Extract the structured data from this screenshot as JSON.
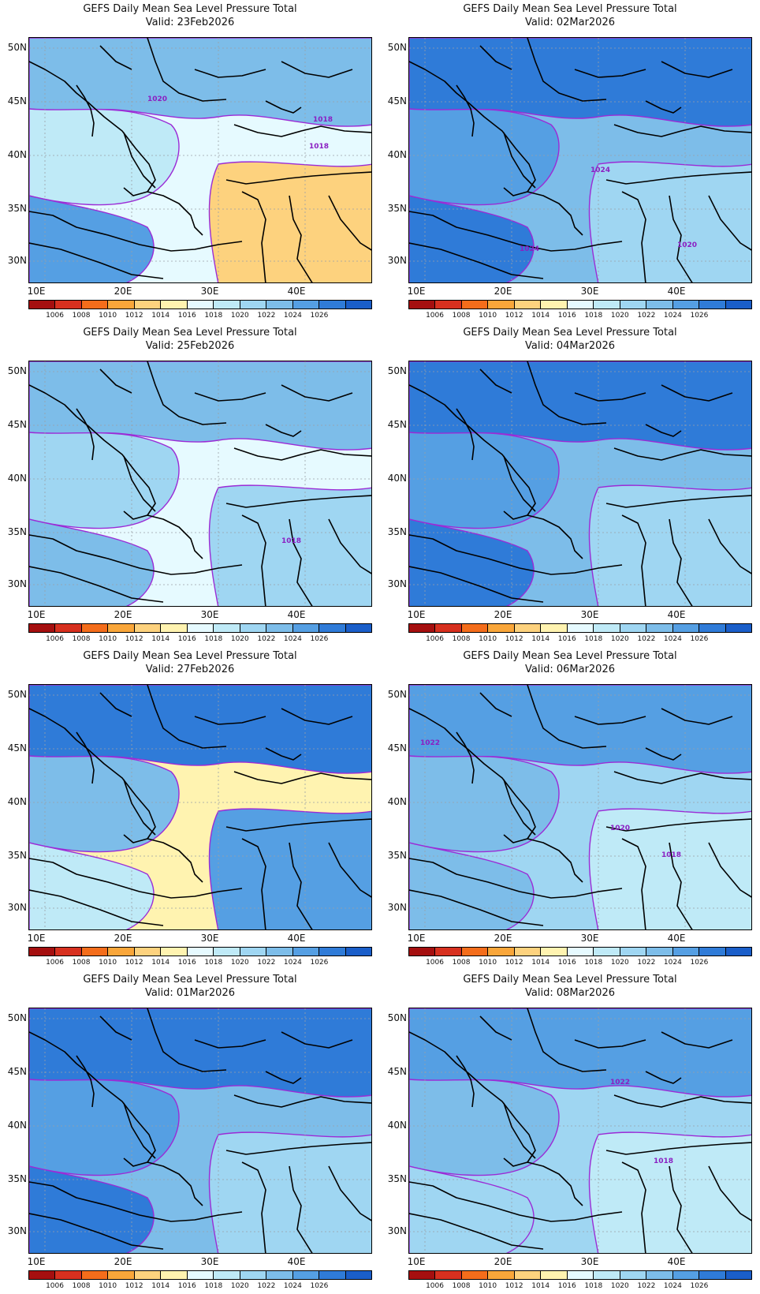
{
  "title": "GEFS Daily Mean Sea Level Pressure Total",
  "lat_labels": [
    "50N",
    "45N",
    "40N",
    "35N",
    "30N"
  ],
  "lon_labels": [
    "10E",
    "20E",
    "30E",
    "40E"
  ],
  "colorbar": {
    "labels": [
      "1006",
      "1008",
      "1010",
      "1012",
      "1014",
      "1016",
      "1018",
      "1020",
      "1022",
      "1024",
      "1026"
    ],
    "colors": [
      "#a50f0f",
      "#d7301f",
      "#f46d1b",
      "#f9a63a",
      "#fdd27e",
      "#fff3b0",
      "#e6faff",
      "#bfeaf7",
      "#9fd6f2",
      "#7dbde9",
      "#559fe3",
      "#2f7bd8",
      "#1a5ec9"
    ]
  },
  "panels": [
    {
      "valid": "Valid: 23Feb2026",
      "contour_labels": [
        "1020",
        "1018",
        "1018"
      ],
      "pressure_levels": [
        1022,
        1018,
        1016,
        1012,
        1024
      ]
    },
    {
      "valid": "Valid: 02Mar2026",
      "contour_labels": [
        "1024",
        "1024",
        "1020"
      ],
      "pressure_levels": [
        1026,
        1024,
        1022,
        1020,
        1026
      ]
    },
    {
      "valid": "Valid: 25Feb2026",
      "contour_labels": [
        "1018"
      ],
      "pressure_levels": [
        1022,
        1020,
        1016,
        1020,
        1022
      ]
    },
    {
      "valid": "Valid: 04Mar2026",
      "contour_labels": [],
      "pressure_levels": [
        1026,
        1024,
        1022,
        1020,
        1026
      ]
    },
    {
      "valid": "Valid: 27Feb2026",
      "contour_labels": [],
      "pressure_levels": [
        1026,
        1022,
        1014,
        1024,
        1018
      ]
    },
    {
      "valid": "Valid: 06Mar2026",
      "contour_labels": [
        "1022",
        "1020",
        "1018"
      ],
      "pressure_levels": [
        1024,
        1022,
        1020,
        1018,
        1022
      ]
    },
    {
      "valid": "Valid: 01Mar2026",
      "contour_labels": [],
      "pressure_levels": [
        1026,
        1024,
        1022,
        1020,
        1026
      ]
    },
    {
      "valid": "Valid: 08Mar2026",
      "contour_labels": [
        "1022",
        "1018"
      ],
      "pressure_levels": [
        1024,
        1022,
        1020,
        1018,
        1020
      ]
    }
  ]
}
